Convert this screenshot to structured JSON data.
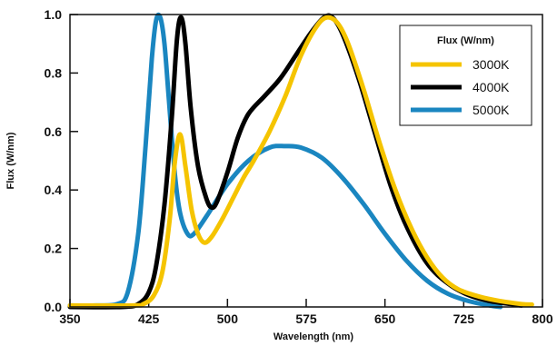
{
  "chart_data": {
    "type": "line",
    "title": "",
    "xlabel": "Wavelength (nm)",
    "ylabel": "Flux (W/nm)",
    "xlim": [
      350,
      800
    ],
    "ylim": [
      0,
      1.0
    ],
    "x_ticks": [
      "350",
      "425",
      "500",
      "575",
      "650",
      "725",
      "800"
    ],
    "y_ticks": [
      "0.0",
      "0.2",
      "0.4",
      "0.6",
      "0.8",
      "1.0"
    ],
    "grid": false,
    "legend": {
      "title": "Flux (W/nm)",
      "position": "top-right"
    },
    "series": [
      {
        "name": "5000K",
        "color": "#1a86c0",
        "points": [
          [
            350,
            0.005
          ],
          [
            375,
            0.005
          ],
          [
            395,
            0.01
          ],
          [
            405,
            0.05
          ],
          [
            415,
            0.25
          ],
          [
            422,
            0.55
          ],
          [
            428,
            0.85
          ],
          [
            432,
            0.98
          ],
          [
            436,
            0.99
          ],
          [
            440,
            0.9
          ],
          [
            444,
            0.72
          ],
          [
            450,
            0.45
          ],
          [
            455,
            0.32
          ],
          [
            462,
            0.25
          ],
          [
            468,
            0.25
          ],
          [
            480,
            0.31
          ],
          [
            500,
            0.42
          ],
          [
            520,
            0.5
          ],
          [
            540,
            0.545
          ],
          [
            555,
            0.55
          ],
          [
            570,
            0.545
          ],
          [
            590,
            0.51
          ],
          [
            610,
            0.44
          ],
          [
            630,
            0.35
          ],
          [
            650,
            0.25
          ],
          [
            670,
            0.16
          ],
          [
            690,
            0.09
          ],
          [
            710,
            0.045
          ],
          [
            730,
            0.02
          ],
          [
            750,
            0.005
          ],
          [
            760,
            0.0
          ]
        ]
      },
      {
        "name": "4000K",
        "color": "#000000",
        "points": [
          [
            350,
            0.0
          ],
          [
            400,
            0.0
          ],
          [
            415,
            0.01
          ],
          [
            425,
            0.05
          ],
          [
            432,
            0.14
          ],
          [
            440,
            0.35
          ],
          [
            447,
            0.65
          ],
          [
            452,
            0.92
          ],
          [
            456,
            0.99
          ],
          [
            460,
            0.9
          ],
          [
            465,
            0.68
          ],
          [
            472,
            0.48
          ],
          [
            480,
            0.37
          ],
          [
            485,
            0.34
          ],
          [
            490,
            0.36
          ],
          [
            500,
            0.46
          ],
          [
            510,
            0.58
          ],
          [
            520,
            0.66
          ],
          [
            535,
            0.72
          ],
          [
            550,
            0.78
          ],
          [
            565,
            0.86
          ],
          [
            580,
            0.94
          ],
          [
            592,
            0.99
          ],
          [
            600,
            0.99
          ],
          [
            610,
            0.93
          ],
          [
            625,
            0.78
          ],
          [
            640,
            0.6
          ],
          [
            655,
            0.42
          ],
          [
            670,
            0.28
          ],
          [
            690,
            0.15
          ],
          [
            710,
            0.08
          ],
          [
            730,
            0.04
          ],
          [
            750,
            0.02
          ],
          [
            770,
            0.01
          ],
          [
            780,
            0.005
          ]
        ]
      },
      {
        "name": "3000K",
        "color": "#f5c400",
        "points": [
          [
            350,
            0.005
          ],
          [
            410,
            0.005
          ],
          [
            420,
            0.01
          ],
          [
            430,
            0.04
          ],
          [
            438,
            0.12
          ],
          [
            445,
            0.3
          ],
          [
            450,
            0.5
          ],
          [
            455,
            0.59
          ],
          [
            460,
            0.48
          ],
          [
            466,
            0.33
          ],
          [
            472,
            0.25
          ],
          [
            478,
            0.22
          ],
          [
            485,
            0.24
          ],
          [
            495,
            0.3
          ],
          [
            505,
            0.37
          ],
          [
            515,
            0.44
          ],
          [
            525,
            0.5
          ],
          [
            540,
            0.6
          ],
          [
            555,
            0.72
          ],
          [
            570,
            0.86
          ],
          [
            585,
            0.96
          ],
          [
            595,
            0.99
          ],
          [
            605,
            0.97
          ],
          [
            615,
            0.9
          ],
          [
            630,
            0.74
          ],
          [
            645,
            0.56
          ],
          [
            660,
            0.4
          ],
          [
            675,
            0.27
          ],
          [
            690,
            0.17
          ],
          [
            705,
            0.1
          ],
          [
            720,
            0.06
          ],
          [
            740,
            0.035
          ],
          [
            760,
            0.02
          ],
          [
            780,
            0.01
          ],
          [
            790,
            0.008
          ]
        ]
      }
    ],
    "legend_order": [
      "3000K",
      "4000K",
      "5000K"
    ]
  }
}
